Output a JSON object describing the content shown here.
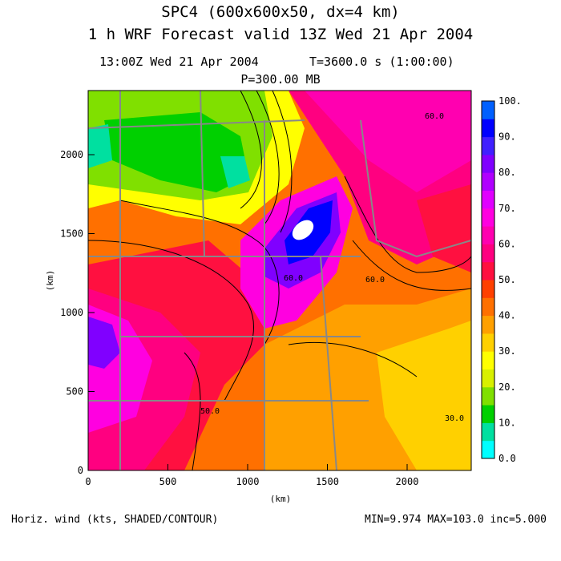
{
  "titles": {
    "line1": "SPC4 (600x600x50, dx=4 km)",
    "line2": "1 h WRF Forecast valid 13Z Wed 21 Apr 2004",
    "time": "13:00Z Wed 21 Apr 2004",
    "elapsed": "T=3600.0 s (1:00:00)",
    "level": "P=300.00 MB"
  },
  "footer": {
    "field": "Horiz. wind (kts, SHADED/CONTOUR)",
    "stats": "MIN=9.974 MAX=103.0 inc=5.000"
  },
  "axes": {
    "x_label": "(km)",
    "y_label": "(km)",
    "x_ticks": [
      "0",
      "500",
      "1000",
      "1500",
      "2000"
    ],
    "y_ticks": [
      "0",
      "500",
      "1000",
      "1500",
      "2000"
    ]
  },
  "colorbar": {
    "labels": [
      "0.0",
      "10.",
      "20.",
      "30.",
      "40.",
      "50.",
      "60.",
      "70.",
      "80.",
      "90.",
      "100."
    ],
    "colors": [
      "#00ffff",
      "#00e0a0",
      "#00d000",
      "#80e000",
      "#d8f000",
      "#ffff00",
      "#ffd000",
      "#ffa000",
      "#ff7000",
      "#ff4000",
      "#ff1040",
      "#ff0080",
      "#ff00b0",
      "#ff00e0",
      "#e000ff",
      "#b000ff",
      "#8000ff",
      "#4020ff",
      "#0000ff",
      "#0060ff"
    ]
  },
  "contour_labels": [
    "60.0",
    "60.0",
    "60.0",
    "30.0",
    "50.0"
  ]
}
